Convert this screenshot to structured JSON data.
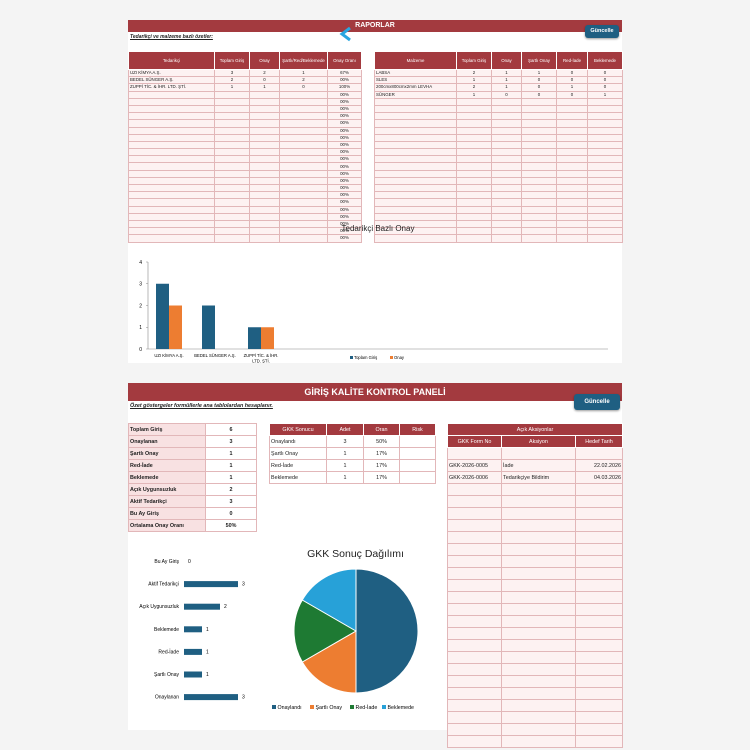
{
  "reports": {
    "banner_title": "RAPORLAR",
    "update_button": "Güncelle",
    "subtitle": "Tedarikçi ve malzeme bazlı özetler:",
    "supplier_table": {
      "headers": [
        "Tedarikçi",
        "Toplam Giriş",
        "Onay",
        "Şartlı/Red/Beklemede",
        "Onay Oranı"
      ],
      "rows": [
        [
          "UZI KİMYA A.Ş.",
          "3",
          "2",
          "1",
          "67%"
        ],
        [
          "BEDEL SÜNGER A.Ş.",
          "2",
          "0",
          "2",
          "00%"
        ],
        [
          "ZUPPİ TİC. & İHR. LTD. ŞTİ.",
          "1",
          "1",
          "0",
          "100%"
        ]
      ],
      "filler_rate": "00%"
    },
    "material_table": {
      "headers": [
        "Malzeme",
        "Toplam Giriş",
        "Onay",
        "Şartlı Onay",
        "Red-İade",
        "Beklemede"
      ],
      "rows": [
        [
          "LABSA",
          "2",
          "1",
          "1",
          "0",
          "0"
        ],
        [
          "SLES",
          "1",
          "1",
          "0",
          "0",
          "0"
        ],
        [
          "200cmx800cmx2mm LEVHA",
          "2",
          "1",
          "0",
          "1",
          "0"
        ],
        [
          "SÜNGER",
          "1",
          "0",
          "0",
          "0",
          "1"
        ]
      ]
    },
    "chart_data": {
      "type": "bar",
      "title": "Tedarikçi Bazlı Onay",
      "categories": [
        "UZI KİMYA A.Ş.",
        "BEDEL SÜNGER A.Ş.",
        "ZUPPİ TİC. & İHR. LTD. ŞTİ."
      ],
      "series": [
        {
          "name": "Toplam Giriş",
          "values": [
            3,
            2,
            1
          ],
          "color": "#1f5f82"
        },
        {
          "name": "Onay",
          "values": [
            2,
            0,
            1
          ],
          "color": "#ed7d31"
        }
      ],
      "ylim": [
        0,
        4
      ],
      "yticks": [
        "0",
        "1",
        "2",
        "3",
        "4"
      ],
      "legend": "bottom"
    }
  },
  "dashboard": {
    "banner_title": "GİRİŞ KALİTE KONTROL PANELİ",
    "update_button": "Güncelle",
    "subtitle": "Özet göstergeler formüllerle ana tablolardan hesaplanır.",
    "kpis": [
      {
        "label": "Toplam Giriş",
        "value": "6"
      },
      {
        "label": "Onaylanan",
        "value": "3"
      },
      {
        "label": "Şartlı Onay",
        "value": "1"
      },
      {
        "label": "Red-İade",
        "value": "1"
      },
      {
        "label": "Beklemede",
        "value": "1"
      },
      {
        "label": "Açık Uygunsuzluk",
        "value": "2"
      },
      {
        "label": "Aktif Tedarikçi",
        "value": "3"
      },
      {
        "label": "Bu Ay Giriş",
        "value": "0"
      },
      {
        "label": "Ortalama Onay Oranı",
        "value": "50%"
      }
    ],
    "result_table": {
      "headers": [
        "GKK Sonucu",
        "Adet",
        "Oran",
        "Risk"
      ],
      "rows": [
        [
          "Onaylandı",
          "3",
          "50%",
          ""
        ],
        [
          "Şartlı Onay",
          "1",
          "17%",
          ""
        ],
        [
          "Red-İade",
          "1",
          "17%",
          ""
        ],
        [
          "Beklemede",
          "1",
          "17%",
          ""
        ]
      ]
    },
    "actions_table": {
      "caption": "Açık Aksiyonlar",
      "headers": [
        "GKK Form No",
        "Aksiyon",
        "Hedef Tarih"
      ],
      "rows": [
        [
          "GKK-2026-0005",
          "İade",
          "22.02.2026"
        ],
        [
          "GKK-2026-0006",
          "Tedarikçiye Bildirim",
          "04.03.2026"
        ]
      ]
    },
    "chart_data": [
      {
        "type": "bar",
        "orientation": "horizontal",
        "categories": [
          "Bu Ay Giriş",
          "Aktif Tedarikçi",
          "Açık Uygunsuzluk",
          "Beklemede",
          "Red-İade",
          "Şartlı Onay",
          "Onaylanan"
        ],
        "values": [
          0,
          3,
          2,
          1,
          1,
          1,
          3
        ],
        "color": "#1f5f82",
        "xlim": [
          0,
          3
        ]
      },
      {
        "type": "pie",
        "title": "GKK Sonuç Dağılımı",
        "labels": [
          "Onaylandı",
          "Şartlı Onay",
          "Red-İade",
          "Beklemede"
        ],
        "values": [
          3,
          1,
          1,
          1
        ],
        "colors": [
          "#1f5f82",
          "#ed7d31",
          "#1e7a33",
          "#27a1d8"
        ],
        "legend": "bottom"
      }
    ]
  }
}
